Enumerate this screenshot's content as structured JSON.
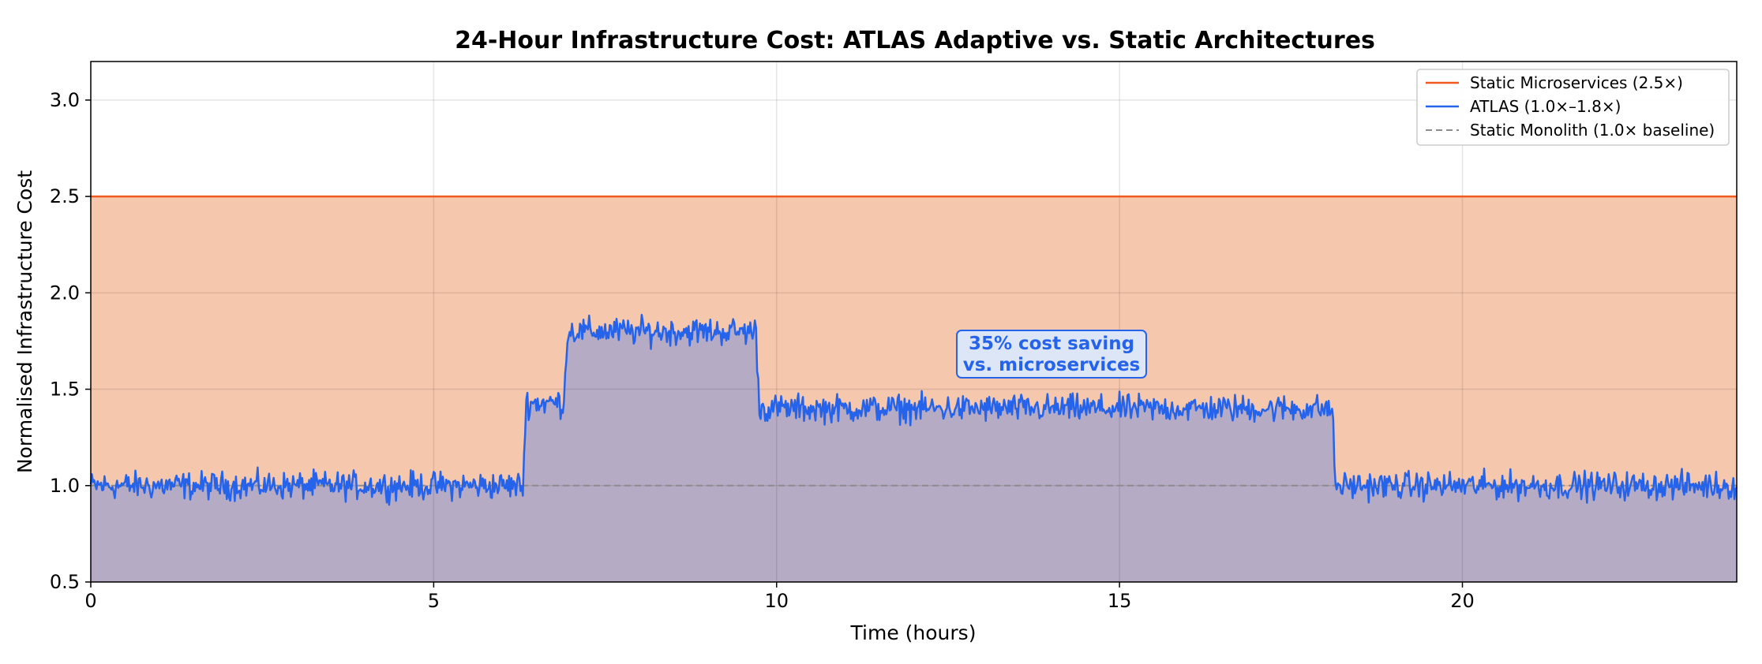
{
  "chart_data": {
    "type": "line",
    "title": "24-Hour Infrastructure Cost: ATLAS Adaptive vs. Static Architectures",
    "xlabel": "Time (hours)",
    "ylabel": "Normalised Infrastructure Cost",
    "xlim": [
      0,
      24
    ],
    "ylim": [
      0.5,
      3.2
    ],
    "x_ticks": [
      0,
      5,
      10,
      15,
      20
    ],
    "y_ticks": [
      0.5,
      1.0,
      1.5,
      2.0,
      2.5,
      3.0
    ],
    "x_tick_labels": [
      "0",
      "5",
      "10",
      "15",
      "20"
    ],
    "y_tick_labels": [
      "0.5",
      "1.0",
      "1.5",
      "2.0",
      "2.5",
      "3.0"
    ],
    "grid": true,
    "legend_position": "top-right",
    "series": [
      {
        "name": "Static Microservices (2.5×)",
        "color": "#f05a1e",
        "style": "solid",
        "filled": true,
        "fill_color": "#f5c7ad",
        "x": [
          0,
          24
        ],
        "y": [
          2.5,
          2.5
        ]
      },
      {
        "name": "ATLAS (1.0×–1.8×)",
        "color": "#2563eb",
        "style": "solid",
        "filled": true,
        "fill_color": "#b6abc5",
        "x": [
          0,
          6.3,
          6.35,
          6.9,
          6.95,
          9.7,
          9.75,
          18.1,
          18.15,
          24
        ],
        "y": [
          1.0,
          1.0,
          1.43,
          1.43,
          1.8,
          1.8,
          1.4,
          1.4,
          1.0,
          1.0
        ],
        "noise_amplitude": 0.05
      },
      {
        "name": "Static Monolith (1.0× baseline)",
        "color": "#8c8c8c",
        "style": "dashed",
        "filled": false,
        "x": [
          0,
          24
        ],
        "y": [
          1.0,
          1.0
        ]
      }
    ],
    "annotations": [
      {
        "text_line1": "35% cost saving",
        "text_line2": "vs. microservices",
        "x": 14.0,
        "y": 1.68,
        "color": "#2563eb",
        "box_fill": "#dde6f7",
        "box_edge": "#2563eb"
      }
    ]
  }
}
